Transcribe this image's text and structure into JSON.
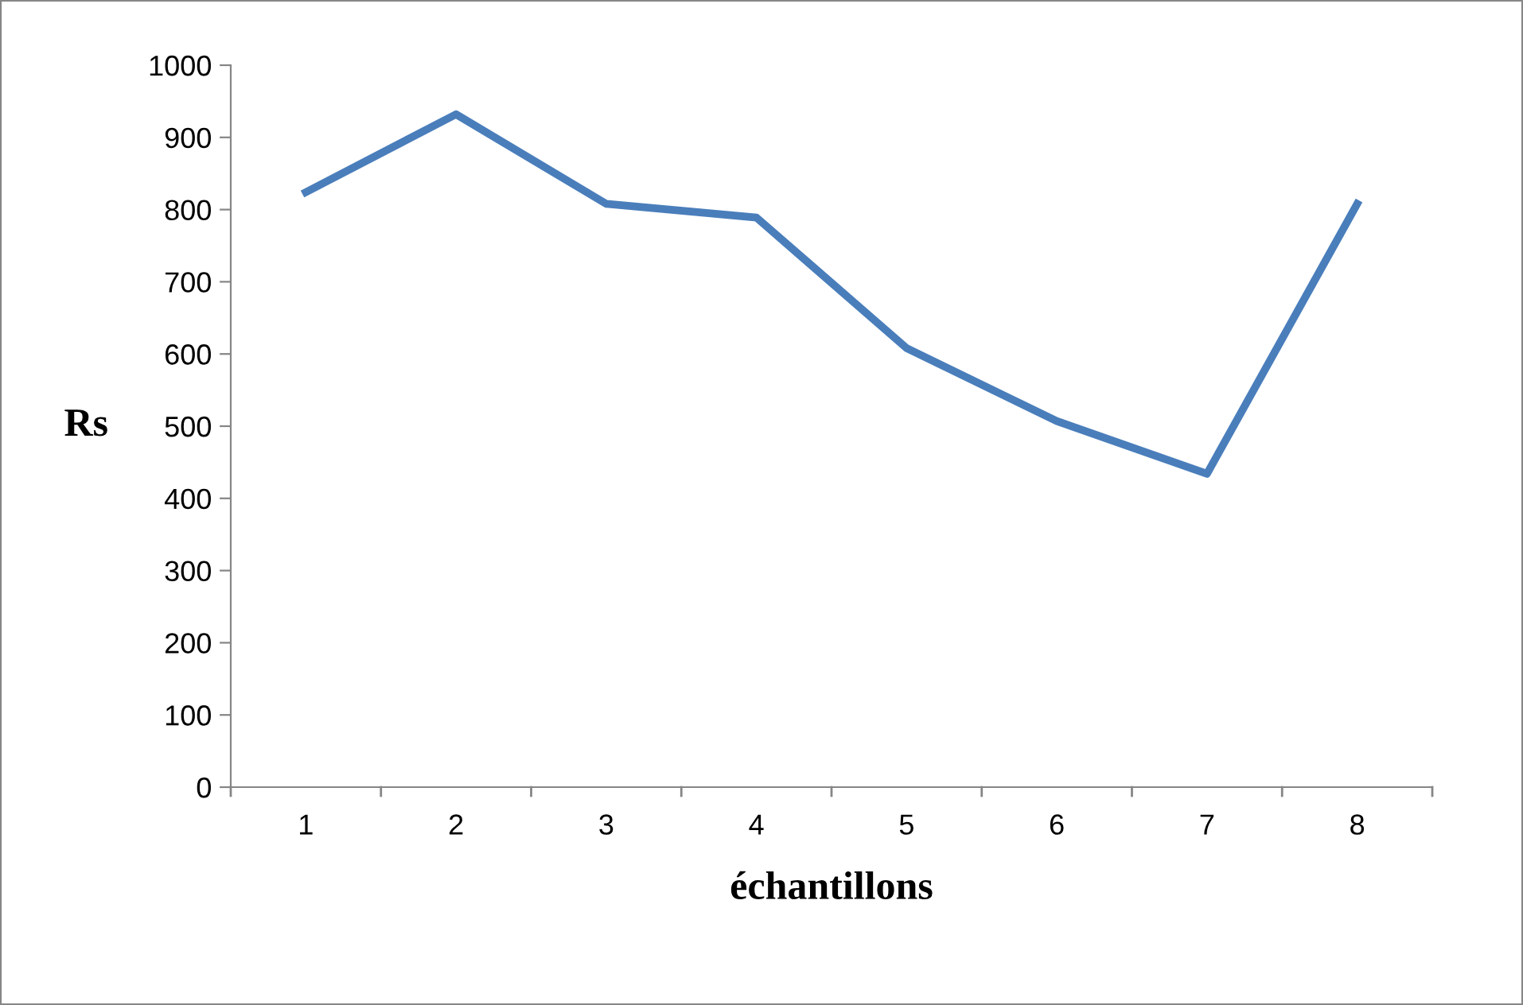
{
  "chart_data": {
    "type": "line",
    "xlabel": "échantillons",
    "ylabel": "Rs",
    "categories": [
      "1",
      "2",
      "3",
      "4",
      "5",
      "6",
      "7",
      "8"
    ],
    "series": [
      {
        "color": "#4a7ebb",
        "values": [
          824,
          932,
          808,
          789,
          608,
          507,
          434,
          808
        ]
      }
    ],
    "ylim": [
      0,
      1000
    ],
    "yticks": [
      0,
      100,
      200,
      300,
      400,
      500,
      600,
      700,
      800,
      900,
      1000
    ],
    "grid": false,
    "legend": false,
    "marker": "none",
    "line_style": "solid"
  }
}
